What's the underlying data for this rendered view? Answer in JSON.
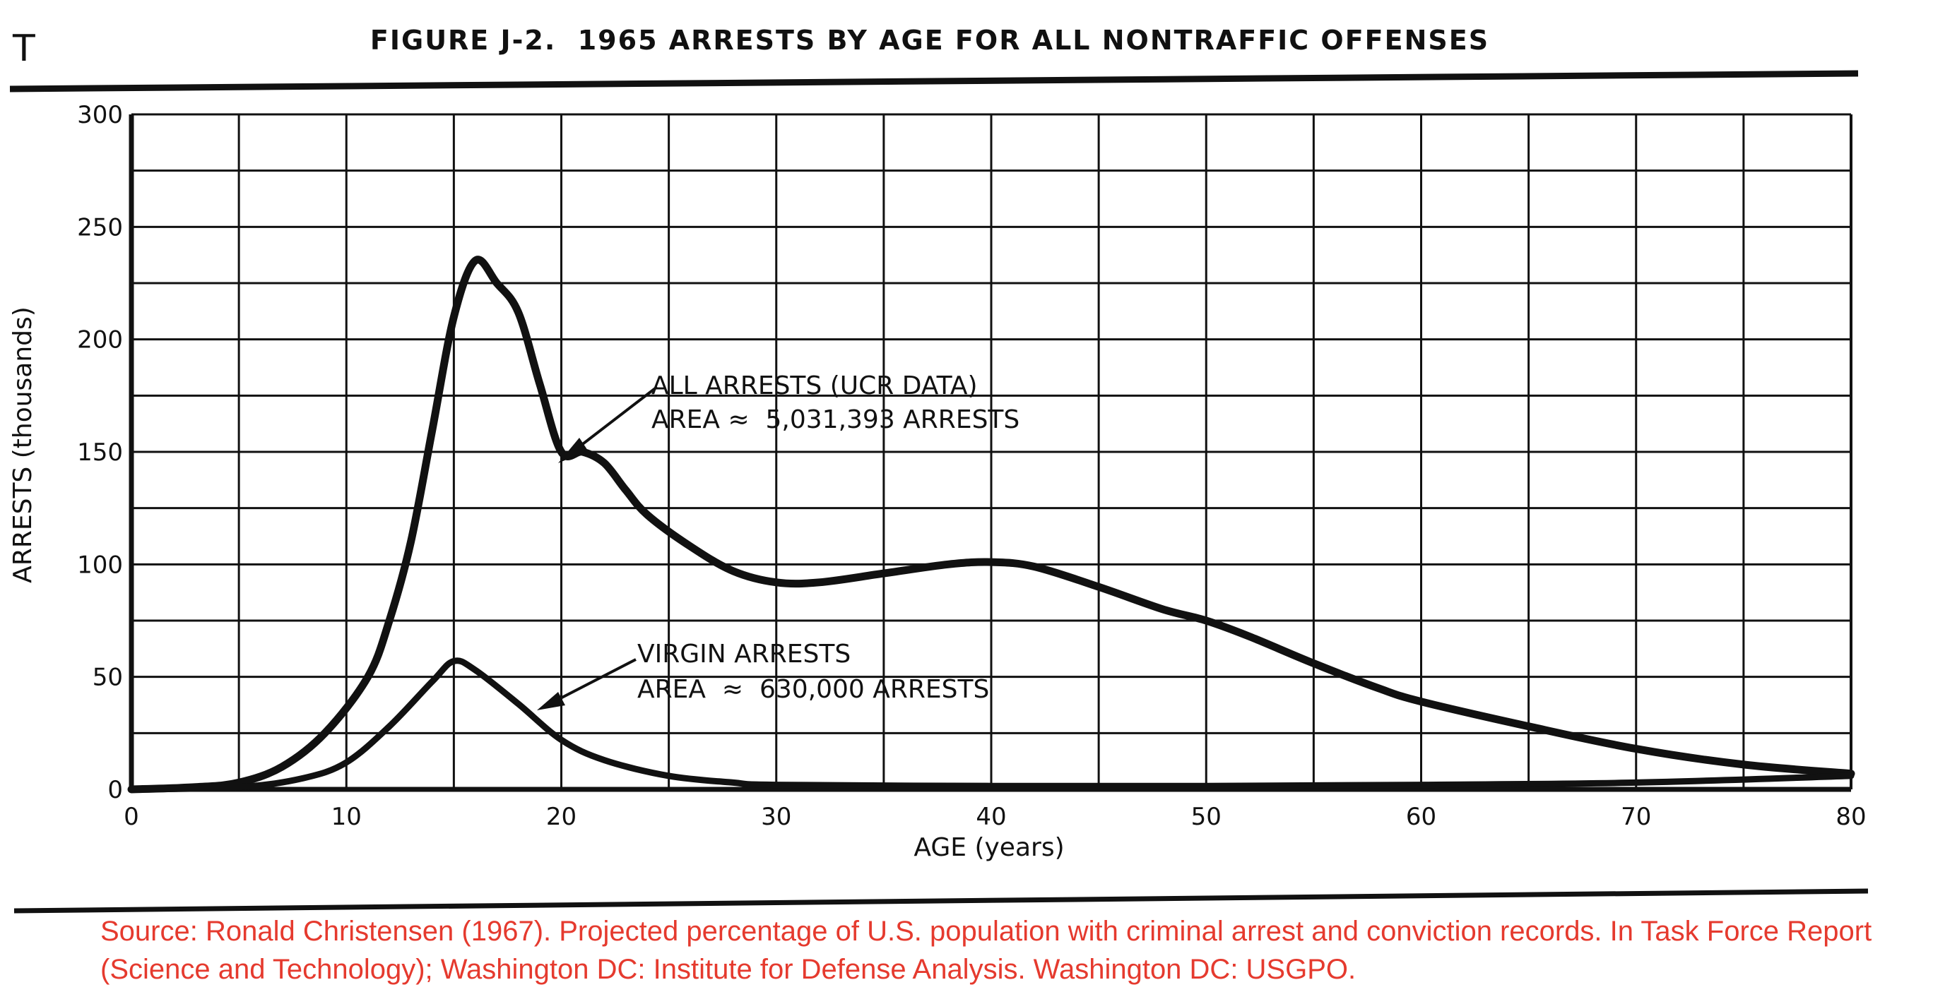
{
  "corner_mark": "T",
  "chart_data": {
    "type": "line",
    "title": "FIGURE J-2.  1965 ARRESTS BY AGE FOR ALL NONTRAFFIC OFFENSES",
    "xlabel": "AGE (years)",
    "ylabel": "ARRESTS (thousands)",
    "xlim": [
      0,
      80
    ],
    "ylim": [
      0,
      300
    ],
    "x_ticks": [
      "0",
      "10",
      "20",
      "30",
      "40",
      "50",
      "60",
      "70",
      "80"
    ],
    "y_ticks": [
      "0",
      "50",
      "100",
      "150",
      "200",
      "250",
      "300"
    ],
    "grid": true,
    "series": [
      {
        "name": "ALL ARRESTS (UCR DATA)",
        "x": [
          0,
          3,
          5,
          7,
          9,
          11,
          12,
          13,
          14,
          15,
          16,
          17,
          18,
          19,
          20,
          21,
          22,
          23,
          24,
          26,
          28,
          30,
          32,
          35,
          38,
          40,
          42,
          45,
          48,
          50,
          52,
          55,
          58,
          60,
          65,
          70,
          75,
          80
        ],
        "y": [
          0,
          1,
          3,
          10,
          25,
          50,
          75,
          110,
          160,
          210,
          235,
          225,
          212,
          180,
          150,
          150,
          145,
          133,
          122,
          108,
          97,
          92,
          92,
          96,
          100,
          101,
          99,
          90,
          80,
          75,
          68,
          56,
          45,
          39,
          28,
          18,
          11,
          7
        ]
      },
      {
        "name": "VIRGIN ARRESTS",
        "x": [
          0,
          5,
          8,
          10,
          12,
          14,
          15,
          16,
          18,
          20,
          22,
          25,
          28,
          30,
          40,
          50,
          60,
          70,
          80
        ],
        "y": [
          0,
          1,
          5,
          12,
          28,
          48,
          57,
          53,
          38,
          22,
          13,
          6,
          3,
          2,
          1.5,
          1.5,
          2,
          3,
          6
        ]
      }
    ],
    "annotations": [
      {
        "line1": "ALL ARRESTS (UCR DATA)",
        "line2": "AREA ≈  5,031,393 ARRESTS"
      },
      {
        "line1": "VIRGIN ARRESTS",
        "line2": "AREA  ≈  630,000 ARRESTS"
      }
    ]
  },
  "source": "Source: Ronald Christensen (1967). Projected percentage of U.S. population with criminal arrest and conviction records. In Task Force Report (Science and Technology); Washington DC: Institute for Defense Analysis. Washington DC: USGPO."
}
